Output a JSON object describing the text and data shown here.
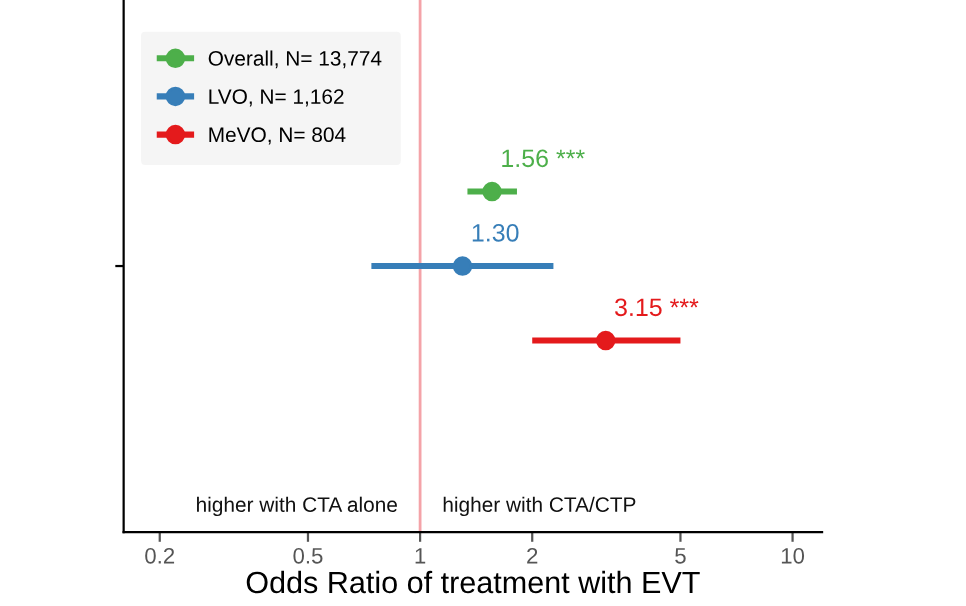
{
  "chart_data": {
    "type": "scatter",
    "orientation": "horizontal",
    "categories": [
      null
    ],
    "xlabel": "Odds Ratio of treatment with EVT",
    "log": "x",
    "xlim": [
      0.16,
      12
    ],
    "xticks": [
      0.2,
      0.5,
      1,
      2,
      5,
      10
    ],
    "series": [
      {
        "name": "Overall, N= 13,774",
        "color": "#4daf4a",
        "values": [
          1.56
        ],
        "errors": [
          [
            1.34,
            1.82
          ]
        ],
        "value_labels": [
          "1.56 ***"
        ]
      },
      {
        "name": "LVO, N= 1,162",
        "color": "#377eb8",
        "values": [
          1.3
        ],
        "errors": [
          [
            0.74,
            2.28
          ]
        ],
        "value_labels": [
          "1.30"
        ]
      },
      {
        "name": "MeVO, N= 804",
        "color": "#e41a1c",
        "values": [
          3.15
        ],
        "errors": [
          [
            2.0,
            5.0
          ]
        ],
        "value_labels": [
          "3.15 ***"
        ]
      }
    ],
    "ref_lines": [
      {
        "axis": "x",
        "value": 1,
        "color": "#f4a3a8"
      }
    ],
    "annotations": [
      "higher with CTA alone",
      "higher with CTA/CTP"
    ],
    "marker": "circle",
    "legend": "top left",
    "grid": false
  }
}
